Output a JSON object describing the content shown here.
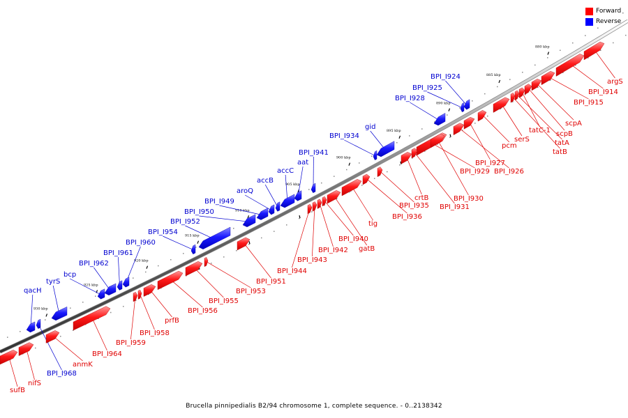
{
  "legend": {
    "forward": {
      "label": "Forward",
      "color": "#ff0000"
    },
    "reverse": {
      "label": "Reverse",
      "color": "#0000ff"
    }
  },
  "caption": "Brucella pinnipedialis B2/94 chromosome 1, complete sequence. - 0..2138342",
  "ticks": [
    "880 kbp",
    "885 kbp",
    "890 kbp",
    "895 kbp",
    "900 kbp",
    "905 kbp",
    "910 kbp",
    "915 kbp",
    "920 kbp",
    "925 kbp",
    "930 kbp"
  ],
  "forward_genes": [
    "argS",
    "BPI_I914",
    "BPI_I915",
    "scpA",
    "scpB",
    "tatC-1",
    "tatA",
    "tatB",
    "serS",
    "pcm",
    "BPI_I927",
    "BPI_I926",
    "BPI_I929",
    "BPI_I930",
    "BPI_I931",
    "crtB",
    "BPI_I935",
    "BPI_I936",
    "tig",
    "gatB",
    "BPI_I940",
    "BPI_I942",
    "BPI_I943",
    "BPI_I944",
    "BPI_I951",
    "BPI_I953",
    "BPI_I955",
    "BPI_I956",
    "prfB",
    "BPI_I958",
    "BPI_I959",
    "BPI_I964",
    "anmK",
    "nifS",
    "sufB"
  ],
  "reverse_genes": [
    "BPI_I924",
    "BPI_I925",
    "BPI_I928",
    "gid",
    "BPI_I934",
    "BPI_I941",
    "aat",
    "accC",
    "accB",
    "aroQ",
    "BPI_I949",
    "BPI_I950",
    "BPI_I952",
    "BPI_I954",
    "BPI_I960",
    "BPI_I961",
    "BPI_I962",
    "bcp",
    "tyrS",
    "qacH",
    "BPI_I968"
  ]
}
